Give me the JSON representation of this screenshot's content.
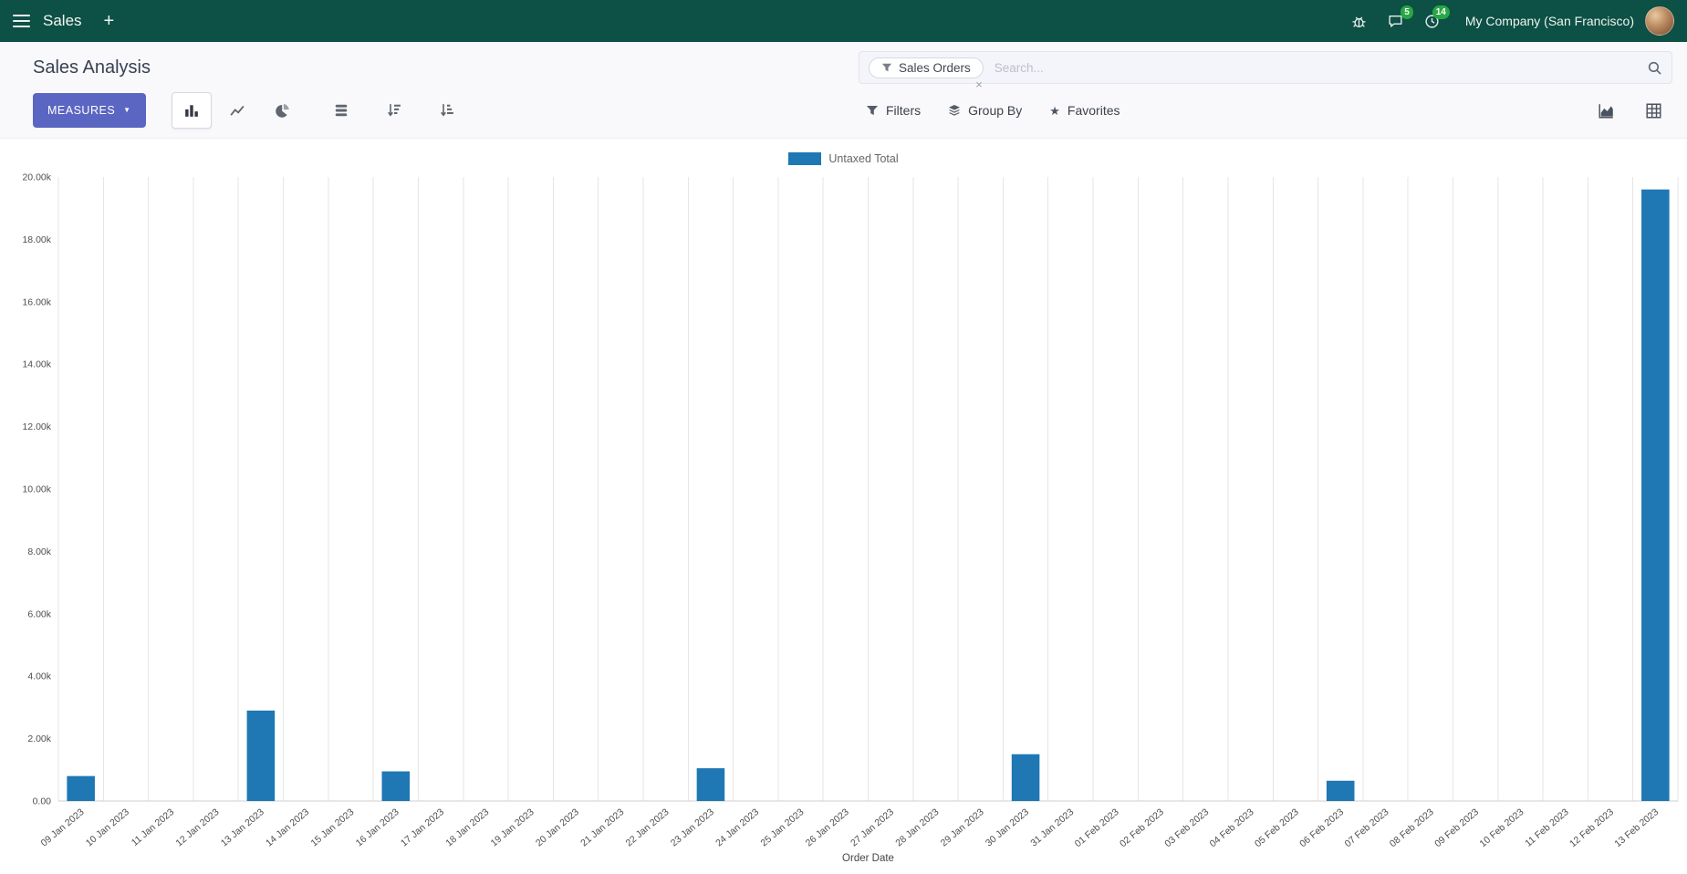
{
  "navbar": {
    "app_name": "Sales",
    "company": "My Company (San Francisco)",
    "messages_badge": "5",
    "activities_badge": "14"
  },
  "icons": {
    "plus": "+",
    "caret_down": "▼",
    "star": "★"
  },
  "control_panel": {
    "title": "Sales Analysis",
    "search": {
      "facet_label": "Sales Orders",
      "remove": "×",
      "placeholder": "Search..."
    },
    "measures_label": "MEASURES",
    "filters_label": "Filters",
    "group_by_label": "Group By",
    "favorites_label": "Favorites"
  },
  "colors": {
    "navbar_bg": "#0d5045",
    "primary_button": "#5b66c2",
    "bar": "#1f77b4",
    "badge": "#28a745"
  },
  "chart_data": {
    "type": "bar",
    "title": "",
    "legend": "Untaxed Total",
    "legend_position": "top",
    "xlabel": "Order Date",
    "ylabel": "",
    "ylim": [
      0,
      20000
    ],
    "y_tick_step": 2000,
    "grid": "vertical-only",
    "bar_color": "#1f77b4",
    "categories": [
      "09 Jan 2023",
      "10 Jan 2023",
      "11 Jan 2023",
      "12 Jan 2023",
      "13 Jan 2023",
      "14 Jan 2023",
      "15 Jan 2023",
      "16 Jan 2023",
      "17 Jan 2023",
      "18 Jan 2023",
      "19 Jan 2023",
      "20 Jan 2023",
      "21 Jan 2023",
      "22 Jan 2023",
      "23 Jan 2023",
      "24 Jan 2023",
      "25 Jan 2023",
      "26 Jan 2023",
      "27 Jan 2023",
      "28 Jan 2023",
      "29 Jan 2023",
      "30 Jan 2023",
      "31 Jan 2023",
      "01 Feb 2023",
      "02 Feb 2023",
      "03 Feb 2023",
      "04 Feb 2023",
      "05 Feb 2023",
      "06 Feb 2023",
      "07 Feb 2023",
      "08 Feb 2023",
      "09 Feb 2023",
      "10 Feb 2023",
      "11 Feb 2023",
      "12 Feb 2023",
      "13 Feb 2023"
    ],
    "values": [
      800,
      0,
      0,
      0,
      2900,
      0,
      0,
      950,
      0,
      0,
      0,
      0,
      0,
      0,
      1050,
      0,
      0,
      0,
      0,
      0,
      0,
      1500,
      0,
      0,
      0,
      0,
      0,
      0,
      650,
      0,
      0,
      0,
      0,
      0,
      0,
      19600
    ]
  }
}
